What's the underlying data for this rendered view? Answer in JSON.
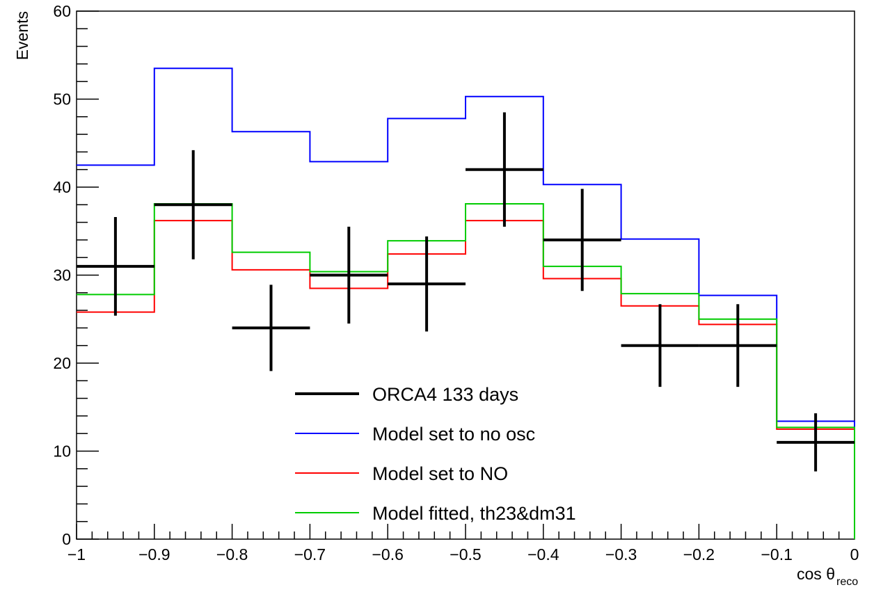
{
  "chart_data": {
    "type": "line",
    "title": "",
    "xlabel": "cos θ",
    "xlabel_subscript": "reco",
    "ylabel": "Events",
    "xlim": [
      -1,
      0
    ],
    "ylim": [
      0,
      60
    ],
    "grid": false,
    "legend_position": "bottom-center",
    "bin_edges": [
      -1,
      -0.9,
      -0.8,
      -0.7,
      -0.6,
      -0.5,
      -0.4,
      -0.3,
      -0.2,
      -0.1,
      0
    ],
    "x_ticks": [
      {
        "value": -1,
        "label": "−1"
      },
      {
        "value": -0.9,
        "label": "−0.9"
      },
      {
        "value": -0.8,
        "label": "−0.8"
      },
      {
        "value": -0.7,
        "label": "−0.7"
      },
      {
        "value": -0.6,
        "label": "−0.6"
      },
      {
        "value": -0.5,
        "label": "−0.5"
      },
      {
        "value": -0.4,
        "label": "−0.4"
      },
      {
        "value": -0.3,
        "label": "−0.3"
      },
      {
        "value": -0.2,
        "label": "−0.2"
      },
      {
        "value": -0.1,
        "label": "−0.1"
      },
      {
        "value": 0,
        "label": "0"
      }
    ],
    "y_ticks": [
      {
        "value": 0,
        "label": "0"
      },
      {
        "value": 10,
        "label": "10"
      },
      {
        "value": 20,
        "label": "20"
      },
      {
        "value": 30,
        "label": "30"
      },
      {
        "value": 40,
        "label": "40"
      },
      {
        "value": 50,
        "label": "50"
      },
      {
        "value": 60,
        "label": "60"
      }
    ],
    "data_points": {
      "name": "ORCA4 133 days",
      "color": "#000000",
      "x": [
        -0.95,
        -0.85,
        -0.75,
        -0.65,
        -0.55,
        -0.45,
        -0.35,
        -0.25,
        -0.15,
        -0.05
      ],
      "y": [
        31,
        38,
        24,
        30,
        29,
        42,
        34,
        22,
        22,
        11
      ],
      "y_err": [
        5.6,
        6.2,
        4.9,
        5.5,
        5.4,
        6.5,
        5.8,
        4.7,
        4.7,
        3.3
      ]
    },
    "series": [
      {
        "name": "Model set to no osc",
        "color": "#0000ff",
        "values": [
          42.5,
          53.5,
          46.3,
          42.9,
          47.8,
          50.3,
          40.3,
          34.1,
          27.7,
          13.4
        ]
      },
      {
        "name": "Model set to NO",
        "color": "#ff0000",
        "values": [
          25.8,
          36.2,
          30.6,
          28.5,
          32.4,
          36.2,
          29.6,
          26.5,
          24.4,
          12.5
        ]
      },
      {
        "name": "Model fitted, th23&dm31",
        "color": "#00cc00",
        "values": [
          27.8,
          38.1,
          32.6,
          30.4,
          33.9,
          38.1,
          31.0,
          27.9,
          25.0,
          12.7
        ]
      }
    ]
  }
}
